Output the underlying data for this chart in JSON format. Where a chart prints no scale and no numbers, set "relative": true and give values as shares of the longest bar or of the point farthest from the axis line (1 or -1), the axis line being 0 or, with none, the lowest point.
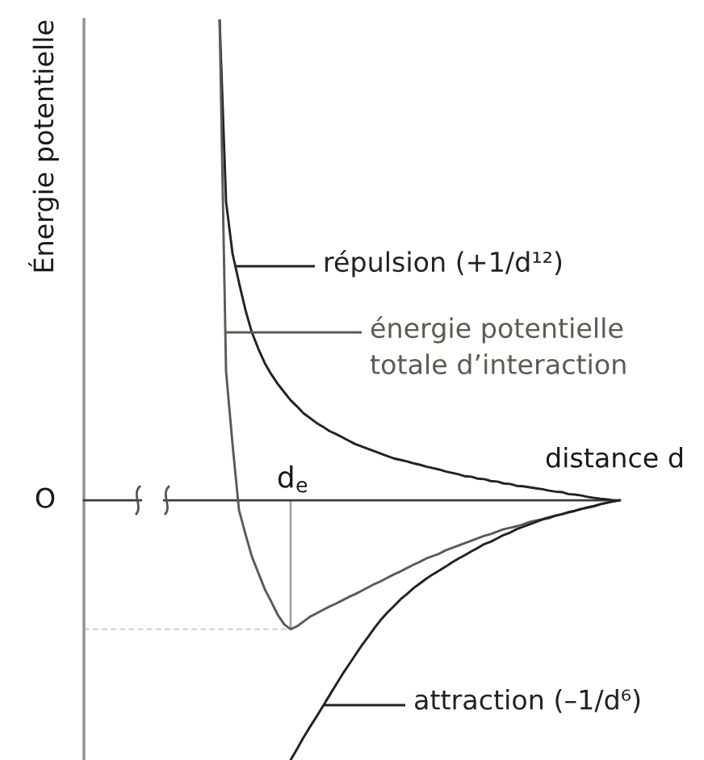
{
  "chart_data": {
    "type": "line",
    "relative": true,
    "legend": "right",
    "xlabel": "distance d",
    "ylabel": "Énergie potentielle",
    "annotations": [
      "O",
      {
        "text": "d$_{e}$",
        "y": -0.268
      }
    ],
    "ref_lines": [
      {
        "axis": "y",
        "value": -0.268,
        "line_style": "dashed",
        "color": "#d2d2d2"
      }
    ],
    "categories": [
      null,
      null,
      null,
      null,
      null,
      null,
      null,
      null,
      null,
      null,
      null,
      null,
      null,
      null,
      null,
      null,
      null,
      null,
      null,
      null,
      null,
      null,
      null,
      null,
      null,
      null,
      null,
      null,
      null,
      null,
      null,
      null,
      null,
      null,
      null,
      null,
      null,
      null,
      null,
      null,
      null,
      null,
      null,
      null,
      null,
      null,
      null,
      null,
      null,
      null,
      null,
      null,
      null,
      null,
      null,
      null,
      null,
      null,
      null,
      null,
      null,
      null,
      null,
      null,
      null,
      null,
      null,
      null,
      null,
      null,
      null,
      null,
      null,
      null,
      null,
      null,
      null,
      null,
      null,
      null,
      null,
      null,
      null,
      null
    ],
    "series": [
      {
        "name": "répulsion (+1/d¹²)",
        "color": "#222222",
        "values": [
          null,
          null,
          null,
          null,
          null,
          null,
          null,
          null,
          null,
          null,
          null,
          null,
          null,
          null,
          null,
          null,
          null,
          null,
          null,
          null,
          null,
          1.0,
          0.621,
          0.513,
          0.453,
          0.396,
          0.349,
          0.315,
          0.285,
          0.262,
          0.242,
          0.225,
          0.208,
          0.195,
          0.181,
          0.171,
          0.161,
          0.153,
          0.144,
          0.138,
          0.131,
          0.124,
          0.117,
          0.112,
          0.107,
          0.102,
          0.097,
          0.092,
          0.087,
          0.084,
          0.081,
          0.077,
          0.074,
          0.07,
          0.067,
          0.064,
          0.06,
          0.057,
          0.054,
          0.05,
          0.049,
          0.045,
          0.044,
          0.04,
          0.039,
          0.035,
          0.034,
          0.03,
          0.029,
          0.027,
          0.025,
          0.023,
          0.02,
          0.018,
          0.017,
          0.013,
          0.012,
          0.01,
          0.007,
          0.005,
          0.003,
          0.002,
          0.0,
          0.0
        ]
      },
      {
        "name": "énergie potentielle\ntotale d’interaction",
        "color": "#5a5c50",
        "values": [
          null,
          null,
          null,
          null,
          null,
          null,
          null,
          null,
          null,
          null,
          null,
          null,
          null,
          null,
          null,
          null,
          null,
          null,
          null,
          null,
          null,
          1.0,
          0.268,
          0.117,
          -0.02,
          -0.07,
          -0.117,
          -0.151,
          -0.185,
          -0.211,
          -0.238,
          -0.258,
          -0.268,
          -0.262,
          -0.252,
          -0.242,
          -0.235,
          -0.228,
          -0.221,
          -0.215,
          -0.208,
          -0.201,
          -0.195,
          -0.188,
          -0.181,
          -0.174,
          -0.168,
          -0.161,
          -0.154,
          -0.148,
          -0.141,
          -0.134,
          -0.128,
          -0.121,
          -0.116,
          -0.111,
          -0.104,
          -0.099,
          -0.094,
          -0.089,
          -0.084,
          -0.079,
          -0.074,
          -0.07,
          -0.065,
          -0.06,
          -0.057,
          -0.054,
          -0.05,
          -0.045,
          -0.042,
          -0.039,
          -0.035,
          -0.032,
          -0.029,
          -0.025,
          -0.022,
          -0.018,
          -0.015,
          -0.012,
          -0.008,
          -0.005,
          -0.002,
          0.0
        ]
      },
      {
        "name": "attraction (–1/d⁶)",
        "color": "#222222",
        "values": [
          null,
          null,
          null,
          null,
          null,
          null,
          null,
          null,
          null,
          null,
          null,
          null,
          null,
          null,
          null,
          null,
          null,
          null,
          null,
          null,
          null,
          null,
          null,
          null,
          null,
          null,
          null,
          null,
          null,
          null,
          null,
          null,
          -0.54,
          -0.517,
          -0.493,
          -0.471,
          -0.45,
          -0.428,
          -0.406,
          -0.384,
          -0.362,
          -0.342,
          -0.322,
          -0.302,
          -0.284,
          -0.265,
          -0.248,
          -0.233,
          -0.22,
          -0.206,
          -0.195,
          -0.183,
          -0.173,
          -0.163,
          -0.154,
          -0.146,
          -0.138,
          -0.129,
          -0.121,
          -0.114,
          -0.106,
          -0.099,
          -0.091,
          -0.086,
          -0.079,
          -0.072,
          -0.067,
          -0.06,
          -0.055,
          -0.05,
          -0.045,
          -0.04,
          -0.037,
          -0.032,
          -0.029,
          -0.025,
          -0.022,
          -0.018,
          -0.015,
          -0.012,
          -0.008,
          -0.005,
          -0.002,
          0.0
        ]
      }
    ]
  }
}
